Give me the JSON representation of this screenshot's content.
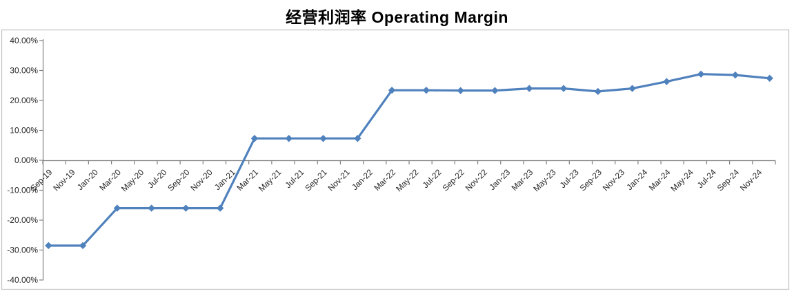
{
  "chart_data": {
    "type": "line",
    "title": "经营利润率 Operating Margin",
    "legend": "none",
    "grid": false,
    "marker": "diamond",
    "ylabel": "",
    "xlabel": "",
    "ylim": [
      -40,
      40
    ],
    "y_tick_values": [
      40,
      30,
      20,
      10,
      0,
      -10,
      -20,
      -30,
      -40
    ],
    "y_tick_labels": [
      "40.00%",
      "30.00%",
      "20.00%",
      "10.00%",
      "0.00%",
      "-10.00%",
      "-20.00%",
      "-30.00%",
      "-40.00%"
    ],
    "x_tick_labels": [
      "Sep-19",
      "Nov-19",
      "Jan-20",
      "Mar-20",
      "May-20",
      "Jul-20",
      "Sep-20",
      "Nov-20",
      "Jan-21",
      "Mar-21",
      "May-21",
      "Jul-21",
      "Sep-21",
      "Nov-21",
      "Jan-22",
      "Mar-22",
      "May-22",
      "Jul-22",
      "Sep-22",
      "Nov-22",
      "Jan-23",
      "Mar-23",
      "May-23",
      "Jul-23",
      "Sep-23",
      "Nov-23",
      "Jan-24",
      "Mar-24",
      "May-24",
      "Jul-24",
      "Sep-24",
      "Nov-24"
    ],
    "x_tick_interval_months": 2,
    "x_axis_total_months": 64,
    "points": [
      {
        "date": "Sep-19",
        "month_index": 0,
        "value_pct": -28.5
      },
      {
        "date": "Dec-19",
        "month_index": 3,
        "value_pct": -28.5
      },
      {
        "date": "Mar-20",
        "month_index": 6,
        "value_pct": -16.0
      },
      {
        "date": "Jun-20",
        "month_index": 9,
        "value_pct": -16.0
      },
      {
        "date": "Sep-20",
        "month_index": 12,
        "value_pct": -16.0
      },
      {
        "date": "Dec-20",
        "month_index": 15,
        "value_pct": -16.0
      },
      {
        "date": "Mar-21",
        "month_index": 18,
        "value_pct": 7.3
      },
      {
        "date": "Jun-21",
        "month_index": 21,
        "value_pct": 7.3
      },
      {
        "date": "Sep-21",
        "month_index": 24,
        "value_pct": 7.3
      },
      {
        "date": "Dec-21",
        "month_index": 27,
        "value_pct": 7.3
      },
      {
        "date": "Mar-22",
        "month_index": 30,
        "value_pct": 23.4
      },
      {
        "date": "Jun-22",
        "month_index": 33,
        "value_pct": 23.4
      },
      {
        "date": "Sep-22",
        "month_index": 36,
        "value_pct": 23.3
      },
      {
        "date": "Dec-22",
        "month_index": 39,
        "value_pct": 23.3
      },
      {
        "date": "Mar-23",
        "month_index": 42,
        "value_pct": 24.0
      },
      {
        "date": "Jun-23",
        "month_index": 45,
        "value_pct": 24.0
      },
      {
        "date": "Sep-23",
        "month_index": 48,
        "value_pct": 23.0
      },
      {
        "date": "Dec-23",
        "month_index": 51,
        "value_pct": 24.0
      },
      {
        "date": "Mar-24",
        "month_index": 54,
        "value_pct": 26.3
      },
      {
        "date": "Jun-24",
        "month_index": 57,
        "value_pct": 28.8
      },
      {
        "date": "Sep-24",
        "month_index": 60,
        "value_pct": 28.5
      },
      {
        "date": "Dec-24",
        "month_index": 63,
        "value_pct": 27.4
      }
    ],
    "colors": {
      "line": "#4F81BD",
      "axis": "#808080",
      "plot_border": "#BFBFBF",
      "tick_text": "#262626",
      "background": "#FFFFFF"
    }
  }
}
